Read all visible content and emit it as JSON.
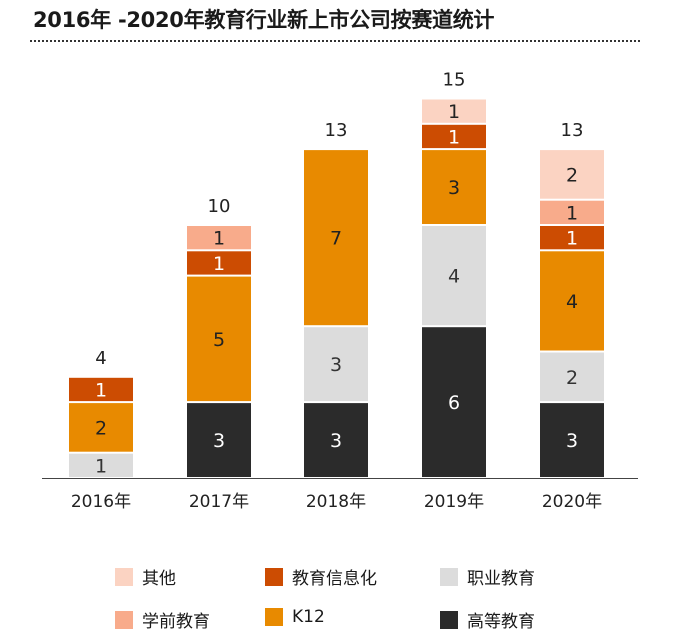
{
  "chart_data": {
    "type": "bar",
    "stacked": true,
    "title": "2016年 -2020年教育行业新上市公司按赛道统计",
    "xlabel": "",
    "ylabel": "",
    "ylim": [
      0,
      15
    ],
    "grid": false,
    "legend_position": "bottom",
    "categories": [
      "2016年",
      "2017年",
      "2018年",
      "2019年",
      "2020年"
    ],
    "totals": [
      4,
      10,
      13,
      15,
      13
    ],
    "series": [
      {
        "name": "高等教育",
        "color": "#2b2b2b",
        "label_color": "#ffffff",
        "values": [
          0,
          3,
          3,
          6,
          3
        ]
      },
      {
        "name": "职业教育",
        "color": "#dcdcdc",
        "label_color": "#333333",
        "values": [
          1,
          0,
          3,
          4,
          2
        ]
      },
      {
        "name": "K12",
        "color": "#e88a00",
        "label_color": "#222222",
        "values": [
          2,
          5,
          7,
          3,
          4
        ]
      },
      {
        "name": "教育信息化",
        "color": "#cc4c02",
        "label_color": "#ffffff",
        "values": [
          1,
          1,
          0,
          1,
          1
        ]
      },
      {
        "name": "学前教育",
        "color": "#f8ab8b",
        "label_color": "#222222",
        "values": [
          0,
          1,
          0,
          0,
          1
        ]
      },
      {
        "name": "其他",
        "color": "#fbd3c2",
        "label_color": "#222222",
        "values": [
          0,
          0,
          0,
          1,
          2
        ]
      }
    ],
    "legend_order": [
      "其他",
      "教育信息化",
      "职业教育",
      "学前教育",
      "K12",
      "高等教育"
    ]
  }
}
